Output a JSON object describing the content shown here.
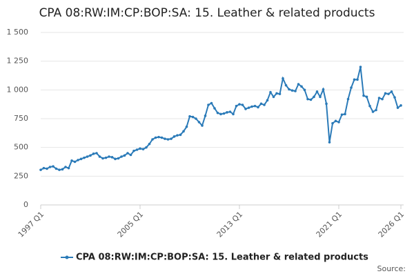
{
  "chart_data": {
    "type": "line",
    "title": "CPA 08:RW:IM:CP:BOP:SA: 15. Leather & related products",
    "source": "Source:",
    "categories": [
      "1997 Q1",
      null,
      null,
      null,
      null,
      null,
      null,
      null,
      null,
      null,
      null,
      null,
      null,
      null,
      null,
      null,
      null,
      null,
      null,
      null,
      null,
      null,
      null,
      null,
      null,
      null,
      null,
      null,
      null,
      null,
      null,
      null,
      "2005 Q1",
      null,
      null,
      null,
      null,
      null,
      null,
      null,
      null,
      null,
      null,
      null,
      null,
      null,
      null,
      null,
      null,
      null,
      null,
      null,
      null,
      null,
      null,
      null,
      null,
      null,
      null,
      null,
      null,
      null,
      null,
      null,
      "2013 Q1",
      null,
      null,
      null,
      null,
      null,
      null,
      null,
      null,
      null,
      null,
      null,
      null,
      null,
      null,
      null,
      null,
      null,
      null,
      null,
      null,
      null,
      null,
      null,
      null,
      null,
      null,
      null,
      null,
      null,
      null,
      null,
      "2021 Q1",
      null,
      null,
      null,
      null,
      null,
      null,
      null,
      null,
      null,
      null,
      null,
      null,
      null,
      null,
      null,
      null,
      null,
      null,
      null,
      "2026 Q1"
    ],
    "series": [
      {
        "name": "CPA 08:RW:IM:CP:BOP:SA: 15. Leather & related products",
        "color": "#2a7ab8",
        "values": [
          305,
          320,
          315,
          330,
          335,
          315,
          305,
          310,
          330,
          320,
          385,
          375,
          390,
          400,
          410,
          420,
          430,
          445,
          450,
          420,
          405,
          410,
          420,
          415,
          400,
          405,
          420,
          430,
          450,
          435,
          470,
          480,
          490,
          485,
          500,
          530,
          570,
          585,
          590,
          585,
          575,
          570,
          575,
          595,
          605,
          610,
          640,
          680,
          770,
          765,
          750,
          720,
          690,
          775,
          870,
          885,
          840,
          800,
          790,
          795,
          805,
          810,
          790,
          860,
          875,
          870,
          835,
          845,
          855,
          860,
          850,
          880,
          870,
          910,
          980,
          940,
          970,
          965,
          1100,
          1040,
          1005,
          995,
          990,
          1050,
          1030,
          1000,
          920,
          915,
          940,
          985,
          940,
          1005,
          880,
          545,
          710,
          730,
          720,
          785,
          790,
          920,
          1020,
          1090,
          1090,
          1200,
          950,
          940,
          860,
          810,
          825,
          930,
          920,
          970,
          965,
          985,
          935,
          845,
          865
        ]
      }
    ],
    "ylim": [
      0,
      1500
    ],
    "yticks": [
      0,
      250,
      500,
      750,
      {
        "value": 1000,
        "label": "1 000"
      },
      {
        "value": 1250,
        "label": "1 250"
      },
      {
        "value": 1500,
        "label": "1 500"
      }
    ],
    "grid": true
  }
}
